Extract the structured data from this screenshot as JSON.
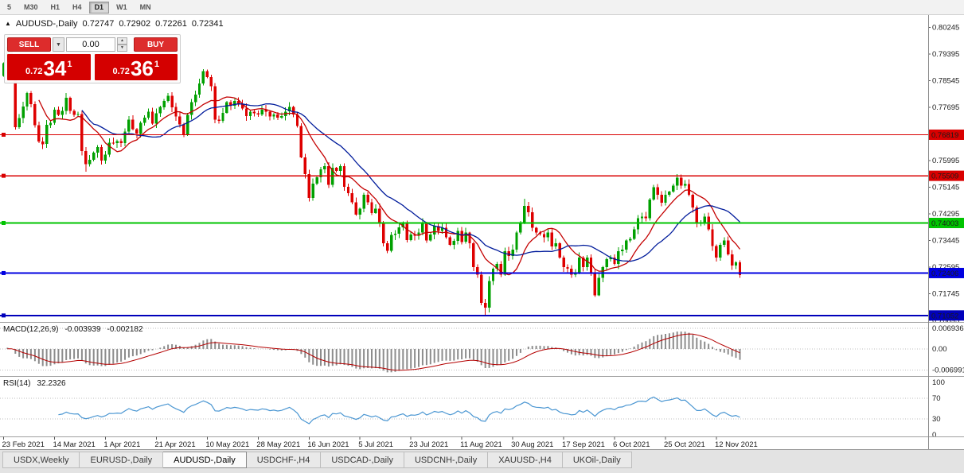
{
  "toolbar": {
    "timeframes": [
      "5",
      "M30",
      "H1",
      "H4",
      "D1",
      "W1",
      "MN"
    ],
    "active": "D1"
  },
  "icons": {
    "symbol_marker": "▲",
    "dropdown": "▼",
    "spin_up": "▲",
    "spin_down": "▼"
  },
  "chart": {
    "symbol_label": "AUDUSD-,Daily",
    "ohlc": {
      "open": "0.72747",
      "high": "0.72902",
      "low": "0.72261",
      "close": "0.72341"
    },
    "trade_panel": {
      "sell_label": "SELL",
      "buy_label": "BUY",
      "volume": "0.00",
      "sell_price": {
        "prefix": "0.72",
        "big": "34",
        "sup": "1"
      },
      "buy_price": {
        "prefix": "0.72",
        "big": "36",
        "sup": "1"
      }
    }
  },
  "chart_data": {
    "type": "candlestick",
    "title": "AUDUSD-,Daily",
    "timeframe": "Daily",
    "y_range": [
      0.7087,
      0.8056
    ],
    "y_ticks": [
      "0.80245",
      "0.79395",
      "0.78545",
      "0.77695",
      "0.75995",
      "0.75145",
      "0.74295",
      "0.73445",
      "0.72595",
      "0.71745",
      "0.70895"
    ],
    "x_axis": [
      {
        "bar": 0,
        "label": "23 Feb 2021"
      },
      {
        "bar": 13,
        "label": "14 Mar 2021"
      },
      {
        "bar": 26,
        "label": "1 Apr 2021"
      },
      {
        "bar": 39,
        "label": "21 Apr 2021"
      },
      {
        "bar": 52,
        "label": "10 May 2021"
      },
      {
        "bar": 65,
        "label": "28 May 2021"
      },
      {
        "bar": 78,
        "label": "16 Jun 2021"
      },
      {
        "bar": 91,
        "label": "5 Jul 2021"
      },
      {
        "bar": 104,
        "label": "23 Jul 2021"
      },
      {
        "bar": 117,
        "label": "11 Aug 2021"
      },
      {
        "bar": 130,
        "label": "30 Aug 2021"
      },
      {
        "bar": 143,
        "label": "17 Sep 2021"
      },
      {
        "bar": 156,
        "label": "6 Oct 2021"
      },
      {
        "bar": 169,
        "label": "25 Oct 2021"
      },
      {
        "bar": 182,
        "label": "12 Nov 2021"
      }
    ],
    "style": {
      "up": "#00A000",
      "down": "#DE0000"
    },
    "closes": [
      0.791,
      0.7962,
      0.7875,
      0.7706,
      0.7735,
      0.7772,
      0.7815,
      0.778,
      0.7712,
      0.766,
      0.7652,
      0.7713,
      0.772,
      0.7762,
      0.7745,
      0.7758,
      0.78,
      0.7758,
      0.7745,
      0.7748,
      0.763,
      0.7588,
      0.7602,
      0.7625,
      0.7642,
      0.76,
      0.7618,
      0.7657,
      0.7655,
      0.7662,
      0.7655,
      0.7692,
      0.773,
      0.77,
      0.7685,
      0.772,
      0.7736,
      0.7755,
      0.7717,
      0.775,
      0.777,
      0.779,
      0.7806,
      0.777,
      0.774,
      0.7715,
      0.7682,
      0.7745,
      0.7786,
      0.781,
      0.7846,
      0.7885,
      0.7866,
      0.7836,
      0.773,
      0.7726,
      0.7752,
      0.7786,
      0.7775,
      0.779,
      0.778,
      0.7766,
      0.7742,
      0.7756,
      0.775,
      0.7746,
      0.7762,
      0.7756,
      0.774,
      0.7746,
      0.7736,
      0.7742,
      0.7756,
      0.777,
      0.7746,
      0.771,
      0.761,
      0.7556,
      0.748,
      0.7526,
      0.7546,
      0.7572,
      0.7582,
      0.7522,
      0.7576,
      0.7566,
      0.7582,
      0.7516,
      0.7496,
      0.7466,
      0.7427,
      0.7446,
      0.749,
      0.7466,
      0.7432,
      0.7446,
      0.7402,
      0.7336,
      0.7312,
      0.7362,
      0.7366,
      0.7386,
      0.7402,
      0.7346,
      0.7364,
      0.736,
      0.737,
      0.74,
      0.7344,
      0.7363,
      0.739,
      0.7375,
      0.7385,
      0.7355,
      0.733,
      0.7343,
      0.7375,
      0.734,
      0.737,
      0.7335,
      0.726,
      0.7235,
      0.7145,
      0.713,
      0.7215,
      0.7255,
      0.727,
      0.7235,
      0.731,
      0.7295,
      0.7315,
      0.737,
      0.74,
      0.7455,
      0.7435,
      0.7385,
      0.737,
      0.7365,
      0.7355,
      0.737,
      0.7325,
      0.7335,
      0.729,
      0.726,
      0.7255,
      0.7235,
      0.724,
      0.729,
      0.726,
      0.729,
      0.724,
      0.717,
      0.7225,
      0.726,
      0.7285,
      0.729,
      0.727,
      0.731,
      0.7315,
      0.7345,
      0.735,
      0.738,
      0.7415,
      0.742,
      0.7415,
      0.7475,
      0.7515,
      0.749,
      0.7465,
      0.749,
      0.75,
      0.752,
      0.7545,
      0.752,
      0.7525,
      0.749,
      0.745,
      0.74,
      0.74,
      0.742,
      0.738,
      0.7327,
      0.729,
      0.733,
      0.7345,
      0.73,
      0.7265,
      0.7275,
      0.7234
    ],
    "extremes": {
      "1": {
        "high": 0.7997
      },
      "21": {
        "low": 0.7564
      },
      "51": {
        "high": 0.7891
      },
      "123": {
        "low": 0.7106
      },
      "133": {
        "high": 0.7478
      },
      "151": {
        "low": 0.7169
      },
      "172": {
        "high": 0.7556
      },
      "188": {
        "low": 0.7227
      }
    },
    "levels": [
      {
        "price": 0.76819,
        "label": "0.76819",
        "color": "#d90000",
        "width": 1.4
      },
      {
        "price": 0.75509,
        "label": "0.75509",
        "color": "#d90000",
        "width": 1.4
      },
      {
        "price": 0.74003,
        "label": "0.74003",
        "color": "#00c400",
        "width": 2
      },
      {
        "price": 0.72406,
        "label": "0.72406",
        "color": "#0000e0",
        "width": 2
      },
      {
        "price": 0.71052,
        "label": "0.71052",
        "color": "#0000bb",
        "width": 2
      }
    ],
    "moving_averages": [
      {
        "period": 10,
        "color": "#c40000"
      },
      {
        "period": 21,
        "color": "#001b9b"
      }
    ],
    "indicators": [
      {
        "type": "MACD",
        "name_label": "MACD(12,26,9)",
        "value_main": "-0.003939",
        "value_signal": "-0.002182",
        "fast": 12,
        "slow": 26,
        "signal": 9,
        "y_ticks": [
          "0.006936",
          "0.00",
          "-0.006991"
        ],
        "histogram_color": "#8c8c8c",
        "signal_color": "#b40000"
      },
      {
        "type": "RSI",
        "name_label": "RSI(14)",
        "value": "32.2326",
        "period": 14,
        "levels": [
          70,
          30
        ],
        "y_ticks": [
          "100",
          "70",
          "30",
          "0"
        ],
        "line_color": "#4a96d2"
      }
    ]
  },
  "tabs": {
    "active_index": 2,
    "items": [
      {
        "label": "USDX,Weekly"
      },
      {
        "label": "EURUSD-,Daily"
      },
      {
        "label": "AUDUSD-,Daily"
      },
      {
        "label": "USDCHF-,H4"
      },
      {
        "label": "USDCAD-,Daily"
      },
      {
        "label": "USDCNH-,Daily"
      },
      {
        "label": "XAUUSD-,H4"
      },
      {
        "label": "UKOil-,Daily"
      }
    ]
  }
}
